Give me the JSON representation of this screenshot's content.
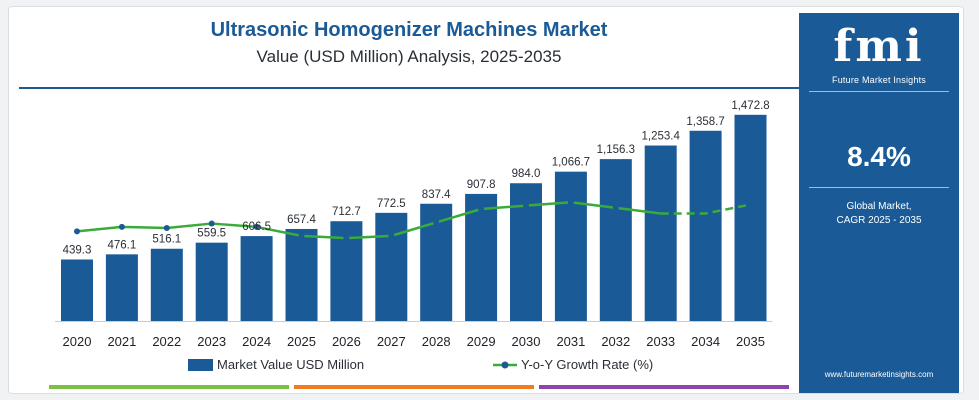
{
  "header": {
    "title": "Ultrasonic Homogenizer Machines Market",
    "subtitle": "Value (USD Million) Analysis, 2025-2035"
  },
  "colors": {
    "bar": "#1a5a97",
    "line": "#3aab3a",
    "marker": "#1a5a97",
    "panel": "#1a5a97",
    "strip": [
      "#7ac143",
      "#f07c22",
      "#8e44ad"
    ]
  },
  "chart_data": {
    "type": "bar",
    "categories": [
      "2020",
      "2021",
      "2022",
      "2023",
      "2024",
      "2025",
      "2026",
      "2027",
      "2028",
      "2029",
      "2030",
      "2031",
      "2032",
      "2033",
      "2034",
      "2035"
    ],
    "series": [
      {
        "name": "Market Value USD Million",
        "type": "bar",
        "values": [
          439.3,
          476.1,
          516.1,
          559.5,
          606.5,
          657.4,
          712.7,
          772.5,
          837.4,
          907.8,
          984.0,
          1066.7,
          1156.3,
          1253.4,
          1358.7,
          1472.8
        ],
        "labels": [
          "439.3",
          "476.1",
          "516.1",
          "559.5",
          "606.5",
          "657.4",
          "712.7",
          "772.5",
          "837.4",
          "907.8",
          "984.0",
          "1,066.7",
          "1,156.3",
          "1,253.4",
          "1,358.7",
          "1,472.8"
        ]
      },
      {
        "name": "Y-o-Y Growth Rate (%)",
        "type": "line",
        "axis": "secondary",
        "style": "dashed-from-2033",
        "values": [
          8.0,
          8.4,
          8.3,
          8.7,
          8.4,
          7.6,
          7.4,
          7.6,
          8.8,
          10.0,
          10.3,
          10.6,
          10.1,
          9.6,
          9.6,
          10.4
        ]
      }
    ],
    "ylim": [
      0,
      1600
    ],
    "y2lim": [
      0,
      20
    ],
    "legend_position": "bottom",
    "grid": false
  },
  "side_panel": {
    "logo_text": "fmi",
    "logo_tagline": "Future Market Insights",
    "cagr_value": "8.4%",
    "cagr_caption_line1": "Global Market,",
    "cagr_caption_line2": "CAGR 2025 - 2035",
    "website": "www.futuremarketinsights.com"
  }
}
